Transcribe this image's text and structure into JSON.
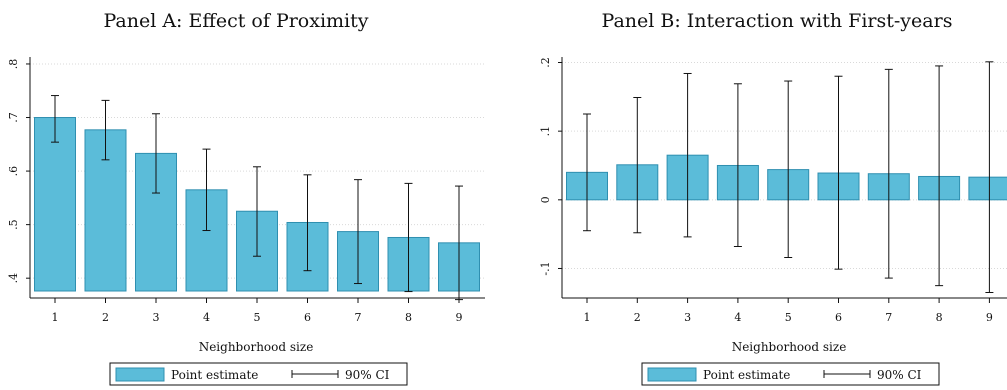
{
  "chart_data": [
    {
      "type": "bar",
      "title": "Panel A: Effect of Proximity",
      "xlabel": "Neighborhood size",
      "ylabel": "",
      "categories": [
        "1",
        "2",
        "3",
        "4",
        "5",
        "6",
        "7",
        "8",
        "9"
      ],
      "yticks": [
        ".4",
        ".5",
        ".6",
        ".7",
        ".8"
      ],
      "ylim": [
        0.363,
        0.813
      ],
      "grid": true,
      "series": [
        {
          "name": "Point estimate",
          "values": [
            0.7,
            0.677,
            0.633,
            0.565,
            0.525,
            0.504,
            0.487,
            0.476,
            0.466
          ],
          "ci_low": [
            0.654,
            0.621,
            0.559,
            0.489,
            0.441,
            0.414,
            0.39,
            0.375,
            0.36
          ],
          "ci_high": [
            0.741,
            0.732,
            0.707,
            0.641,
            0.608,
            0.593,
            0.584,
            0.577,
            0.572
          ]
        }
      ]
    },
    {
      "type": "bar",
      "title": "Panel B: Interaction with First-years",
      "xlabel": "Neighborhood size",
      "ylabel": "",
      "categories": [
        "1",
        "2",
        "3",
        "4",
        "5",
        "6",
        "7",
        "8",
        "9"
      ],
      "yticks": [
        "-.1",
        "0",
        ".1",
        ".2"
      ],
      "ylim": [
        -0.143,
        0.208
      ],
      "grid": true,
      "series": [
        {
          "name": "Point estimate",
          "values": [
            0.04,
            0.051,
            0.065,
            0.05,
            0.044,
            0.039,
            0.038,
            0.034,
            0.033
          ],
          "ci_low": [
            -0.045,
            -0.048,
            -0.054,
            -0.068,
            -0.084,
            -0.101,
            -0.114,
            -0.125,
            -0.135
          ],
          "ci_high": [
            0.125,
            0.149,
            0.184,
            0.169,
            0.173,
            0.18,
            0.19,
            0.195,
            0.201
          ]
        }
      ]
    }
  ],
  "legend": {
    "bar_label": "Point estimate",
    "ci_label": "90% CI",
    "placement": "bottom"
  },
  "colors": {
    "bar_fill": "#5bbcd9",
    "bar_stroke": "#2f8fb0",
    "ci_line": "#111111",
    "grid": "#d9d9d9"
  }
}
